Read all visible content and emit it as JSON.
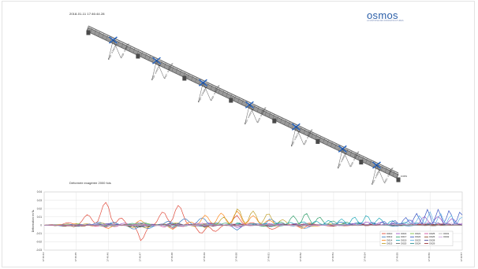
{
  "header": {
    "timestamp": "2018-01-11 17:46:44.28",
    "logo_text": "osmos",
    "logo_tagline": "LA MAÎTRISE DES INFRASTRUCTURES"
  },
  "model": {
    "caption": "Déformée exagérée 2000 fois",
    "sensor_labels": [
      {
        "top": "O010 : -0.00079 ‰",
        "bottom": "O015 : -0.0007 ‰"
      },
      {
        "top": "O016 : -0.00074 ‰",
        "bottom": "O017 : -0.00079 ‰"
      },
      {
        "top": "O019 : -0.00082 ‰",
        "bottom": "O020 : -0.00077 ‰"
      },
      {
        "top": "O022 : -0.00074 ‰",
        "bottom": "O023 : -0.00068 ‰"
      },
      {
        "top": "O025 : -0.00071 ‰",
        "bottom": "O026 : -0.00058 ‰"
      },
      {
        "top": "O028 : -0.00062 ‰",
        "bottom": "O029 : -0.00061 ‰"
      },
      {
        "top": "O031 : -0.00058 ‰",
        "bottom": "O032 : -0.00058 ‰"
      }
    ],
    "bridge_end_label": "0.00%"
  },
  "colors": {
    "deck": "#5a5a5a",
    "sensor": "#1f5fbf",
    "grid": "#dcdcdc"
  },
  "chart_data": {
    "type": "line",
    "title": "",
    "xlabel": "",
    "ylabel": "Déformation en ‰",
    "ylim": [
      -0.03,
      0.04
    ],
    "y_ticks": [
      "0.04",
      "0.03",
      "0.02",
      "0.01",
      "0",
      "-0.01",
      "-0.02",
      "-0.03"
    ],
    "x_ticks": [
      "17:46:44",
      "17:46:45",
      "17:46:46",
      "17:46:47",
      "17:46:48",
      "17:46:49",
      "17:46:50",
      "17:46:51",
      "17:46:52",
      "17:46:53",
      "17:46:54",
      "17:46:55",
      "17:46:56",
      "17:46:57"
    ],
    "grid": true,
    "legend_position": "bottom-right",
    "series": [
      {
        "name": "O010",
        "color": "#e04a3a",
        "values": [
          0,
          0.004,
          0.03,
          -0.02,
          0.034,
          -0.018,
          0.012,
          -0.006,
          0.004,
          -0.002,
          0.001,
          0,
          0.002,
          0.001
        ]
      },
      {
        "name": "O013",
        "color": "#3a7cc4",
        "values": [
          0,
          -0.002,
          0.006,
          -0.008,
          0.007,
          0.009,
          -0.006,
          0.008,
          -0.005,
          0.004,
          0.003,
          -0.002,
          0.001,
          0
        ]
      },
      {
        "name": "O014",
        "color": "#ff8a1f",
        "values": [
          0,
          0.002,
          -0.004,
          0.006,
          -0.005,
          0.012,
          0.017,
          0.006,
          -0.004,
          0.002,
          0,
          0.001,
          0,
          0
        ]
      },
      {
        "name": "O015",
        "color": "#bf9f2a",
        "values": [
          0,
          0.001,
          0.003,
          -0.005,
          0.004,
          -0.004,
          0.02,
          0.014,
          -0.003,
          0.002,
          0.001,
          0,
          0,
          0
        ]
      },
      {
        "name": "O016",
        "color": "#a05ac8",
        "values": [
          0,
          -0.001,
          0.002,
          0.003,
          -0.002,
          0.004,
          -0.003,
          0.002,
          0.002,
          -0.001,
          0.004,
          0.003,
          0.012,
          0.006
        ]
      },
      {
        "name": "O017",
        "color": "#2f9e6a",
        "values": [
          0,
          0.001,
          -0.002,
          0.004,
          -0.003,
          0.002,
          0.003,
          -0.002,
          0.016,
          0.005,
          0.002,
          0.001,
          0,
          0
        ]
      },
      {
        "name": "O019",
        "color": "#1fa8b8",
        "values": [
          0,
          0,
          0.002,
          -0.003,
          0.002,
          -0.002,
          0.002,
          0.002,
          0.004,
          0.006,
          0.012,
          0.004,
          0.002,
          0
        ]
      },
      {
        "name": "O020",
        "color": "#6b6b6b",
        "values": [
          0,
          0.001,
          -0.001,
          0.002,
          -0.002,
          0.001,
          -0.001,
          0.001,
          -0.001,
          0.001,
          0,
          0.001,
          -0.001,
          0
        ]
      },
      {
        "name": "O021",
        "color": "#7bc142",
        "values": [
          0,
          0.002,
          -0.002,
          0.003,
          -0.001,
          0.002,
          0.001,
          -0.002,
          0.002,
          -0.001,
          0.001,
          0,
          0.001,
          0
        ]
      },
      {
        "name": "O022",
        "color": "#3a57c4",
        "values": [
          0,
          0,
          0.001,
          -0.002,
          0.001,
          -0.001,
          0.001,
          -0.001,
          0.001,
          0,
          0.003,
          0.006,
          0.02,
          0.016
        ]
      },
      {
        "name": "O023",
        "color": "#63b3e6",
        "values": [
          0,
          0.001,
          -0.001,
          0.002,
          -0.002,
          0.002,
          -0.001,
          0.002,
          -0.001,
          0.002,
          0.001,
          0.002,
          0.016,
          0.01
        ]
      },
      {
        "name": "O024",
        "color": "#2a8f8f",
        "values": [
          0,
          -0.001,
          0.001,
          -0.002,
          0.002,
          -0.001,
          0.002,
          -0.002,
          0.001,
          -0.001,
          0.001,
          -0.001,
          0.001,
          0
        ]
      },
      {
        "name": "O025",
        "color": "#d34fa0",
        "values": [
          0,
          0.001,
          -0.003,
          0.002,
          -0.004,
          0.003,
          -0.002,
          0.002,
          -0.002,
          0.001,
          -0.001,
          0.001,
          0,
          0
        ]
      },
      {
        "name": "O026",
        "color": "#8a4a2a",
        "values": [
          0,
          -0.002,
          0.001,
          -0.003,
          0.002,
          -0.002,
          0.001,
          -0.001,
          0.001,
          -0.001,
          0,
          0.001,
          0,
          0
        ]
      },
      {
        "name": "O028",
        "color": "#4d4d9e",
        "values": [
          0,
          0.001,
          0.002,
          -0.001,
          0.003,
          -0.002,
          0.002,
          -0.001,
          0.002,
          -0.001,
          0.001,
          0.002,
          0.003,
          0.002
        ]
      },
      {
        "name": "O029",
        "color": "#9b2f2f",
        "values": [
          0,
          -0.001,
          0.001,
          -0.001,
          0.001,
          -0.001,
          0.001,
          0,
          0.001,
          0,
          0.001,
          0,
          0.001,
          0
        ]
      },
      {
        "name": "O031",
        "color": "#b0b0b0",
        "values": [
          0,
          0.001,
          -0.001,
          0.001,
          -0.002,
          0.001,
          -0.001,
          0.001,
          -0.001,
          0.001,
          -0.001,
          0.001,
          -0.001,
          0
        ]
      },
      {
        "name": "O032",
        "color": "#c9a0dc",
        "values": [
          0,
          0,
          0.001,
          -0.001,
          0.001,
          -0.001,
          0.002,
          -0.001,
          0.001,
          -0.001,
          0.002,
          0.001,
          0.004,
          0.002
        ]
      }
    ]
  }
}
